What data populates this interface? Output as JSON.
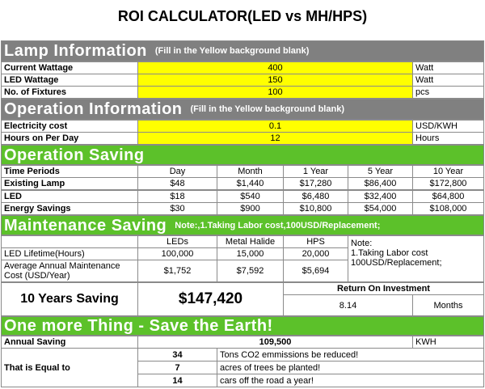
{
  "title": "ROI CALCULATOR(LED vs MH/HPS)",
  "lamp_information": {
    "heading": "Lamp Information",
    "note": "(Fill in the Yellow  background blank)",
    "rows": [
      [
        "Current Wattage",
        "400",
        "Watt"
      ],
      [
        "LED Wattage",
        "150",
        "Watt"
      ],
      [
        "No. of Fixtures",
        "100",
        "pcs"
      ]
    ]
  },
  "operation_information": {
    "heading": "Operation Information",
    "note": "(Fill in the Yellow background blank)",
    "rows": [
      [
        "Electricity cost",
        "0.1",
        "USD/KWH"
      ],
      [
        "Hours on Per Day",
        "12",
        "Hours"
      ]
    ]
  },
  "operation_saving": {
    "heading": "Operation Saving",
    "header": [
      "Time Periods",
      "Day",
      "Month",
      "1 Year",
      "5 Year",
      "10 Year"
    ],
    "rows": [
      [
        "Existing Lamp",
        "$48",
        "$1,440",
        "$17,280",
        "$86,400",
        "$172,800"
      ],
      [
        "LED",
        "$18",
        "$540",
        "$6,480",
        "$32,400",
        "$64,800"
      ],
      [
        "Energy Savings",
        "$30",
        "$900",
        "$10,800",
        "$54,000",
        "$108,000"
      ]
    ]
  },
  "maintenance_saving": {
    "heading": "Maintenance Saving",
    "header": [
      "LEDs",
      "Metal Halide",
      "HPS"
    ],
    "note": [
      "Note:",
      "1.Taking Labor cost",
      "100USD/Replacement;"
    ],
    "rows": [
      [
        "LED Lifetime(Hours)",
        "100,000",
        "15,000",
        "20,000"
      ],
      [
        "Average Annual Maintenance Cost (USD/Year)",
        "$1,752",
        "$7,592",
        "$5,694"
      ]
    ]
  },
  "summary": {
    "label": "10 Years Saving",
    "value": "$147,420",
    "roi_label": "Return On Investment",
    "roi_value": "8.14",
    "roi_unit": "Months"
  },
  "save_earth": {
    "heading": "One more Thing - Save the Earth!",
    "annual_label": "Annual Saving",
    "annual_value": "109,500",
    "annual_unit": "KWH",
    "equal_label": "That is Equal to",
    "items": [
      [
        "34",
        "Tons CO2 emmissions be reduced!"
      ],
      [
        "7",
        "acres of trees be planted!"
      ],
      [
        "14",
        "cars off the road a year!"
      ]
    ]
  }
}
